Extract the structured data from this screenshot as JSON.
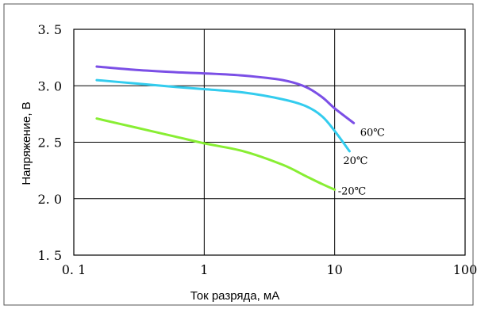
{
  "chart_data": {
    "type": "line",
    "xscale": "log",
    "xlim": [
      0.1,
      100
    ],
    "ylim": [
      1.5,
      3.5
    ],
    "grid": true,
    "xlabel": "Ток разряда, мА",
    "ylabel": "Напряжение, В",
    "x_ticks": [
      {
        "value": 0.1,
        "label": "0. 1"
      },
      {
        "value": 1,
        "label": "1"
      },
      {
        "value": 10,
        "label": "10"
      },
      {
        "value": 100,
        "label": "100"
      }
    ],
    "y_ticks": [
      {
        "value": 1.5,
        "label": "1. 5"
      },
      {
        "value": 2.0,
        "label": "2. 0"
      },
      {
        "value": 2.5,
        "label": "2. 5"
      },
      {
        "value": 3.0,
        "label": "3. 0"
      },
      {
        "value": 3.5,
        "label": "3. 5"
      }
    ],
    "series": [
      {
        "name": "60℃",
        "color": "#7b4fe6",
        "x": [
          0.15,
          0.3,
          0.6,
          1,
          2,
          4,
          6,
          8,
          10,
          14
        ],
        "y": [
          3.17,
          3.14,
          3.12,
          3.11,
          3.09,
          3.05,
          2.99,
          2.9,
          2.8,
          2.67
        ]
      },
      {
        "name": "20℃",
        "color": "#33ccee",
        "x": [
          0.15,
          0.3,
          0.6,
          1,
          2,
          4,
          6,
          8,
          10,
          13
        ],
        "y": [
          3.05,
          3.02,
          2.99,
          2.97,
          2.94,
          2.88,
          2.82,
          2.73,
          2.6,
          2.42
        ]
      },
      {
        "name": "-20℃",
        "color": "#88ee33",
        "x": [
          0.15,
          0.3,
          0.6,
          1,
          2,
          4,
          6,
          8,
          10
        ],
        "y": [
          2.71,
          2.63,
          2.55,
          2.49,
          2.42,
          2.3,
          2.2,
          2.13,
          2.08
        ]
      }
    ]
  }
}
